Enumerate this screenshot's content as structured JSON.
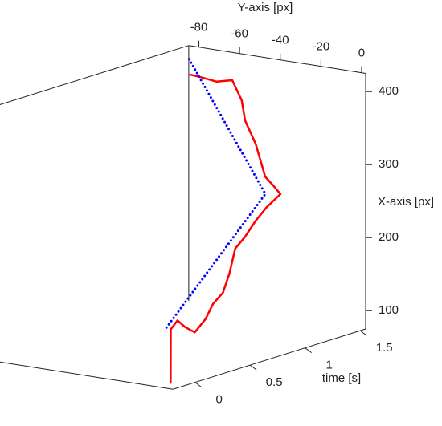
{
  "chart_data": {
    "type": "line3d",
    "time_axis": {
      "label": "time [s]",
      "lim": [
        -0.2,
        1.55
      ],
      "ticks": [
        0,
        0.5,
        1,
        1.5
      ]
    },
    "x_axis": {
      "label": "X-axis [px]",
      "lim": [
        75,
        425
      ],
      "ticks": [
        100,
        200,
        300,
        400
      ]
    },
    "y_axis": {
      "label": "Y-axis [px]",
      "lim": [
        -85,
        2
      ],
      "ticks": [
        -80,
        -60,
        -40,
        -20,
        0
      ]
    },
    "series": [
      {
        "color": "#ff0000",
        "style": "solid",
        "time": [
          0,
          0.02,
          0.1,
          0.15,
          0.22,
          0.28,
          0.35,
          0.42,
          0.48,
          0.55,
          0.62,
          0.7,
          0.78,
          0.85,
          0.9,
          0.97,
          1.05,
          1.12,
          1.2,
          1.28,
          1.36,
          1.44,
          1.5
        ],
        "x": [
          68,
          141,
          149,
          138,
          128,
          144,
          162,
          174,
          198,
          228,
          241,
          260,
          275,
          291,
          297,
          303,
          340,
          365,
          386,
          406,
          395,
          392,
          389
        ],
        "y": [
          -10,
          -11,
          -12,
          -11,
          -10,
          -8,
          -8,
          -7,
          -7,
          -8,
          -7,
          -6,
          -5,
          -2,
          -8,
          -16,
          -25,
          -34,
          -40,
          -49,
          -61,
          -73,
          -82
        ]
      },
      {
        "color": "#0000ff",
        "style": "dotted",
        "time": [
          0,
          0.75,
          1.5
        ],
        "x": [
          144,
          295,
          414
        ],
        "y": [
          -12,
          -4,
          -83
        ]
      }
    ]
  }
}
